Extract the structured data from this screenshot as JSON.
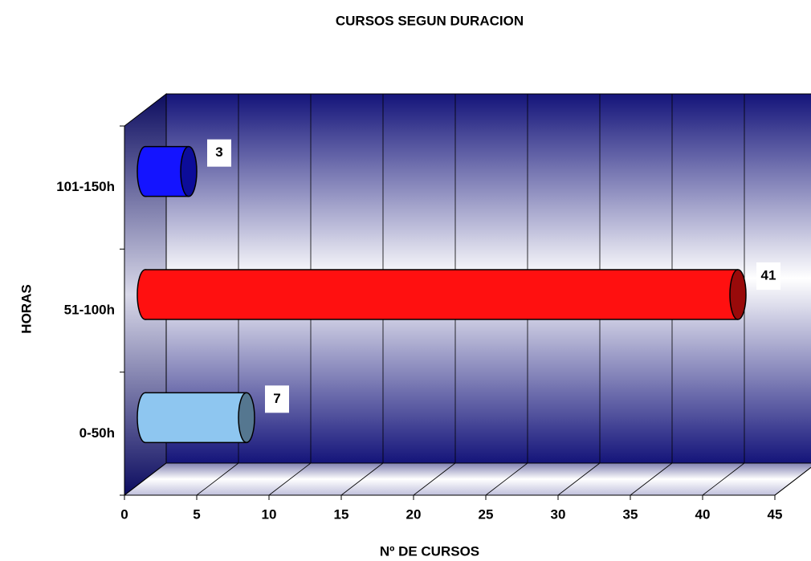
{
  "chart_data": {
    "type": "barh",
    "title": "CURSOS SEGUN DURACION",
    "xlabel": "Nº DE CURSOS",
    "ylabel": "HORAS",
    "categories": [
      "0-50h",
      "51-100h",
      "101-150h"
    ],
    "values": [
      7,
      41,
      3
    ],
    "colors": [
      "#8ec6f0",
      "#ff1010",
      "#1414ff"
    ],
    "xlim": [
      0,
      45
    ],
    "xticks": [
      0,
      5,
      10,
      15,
      20,
      25,
      30,
      35,
      40,
      45
    ],
    "grid": true
  }
}
